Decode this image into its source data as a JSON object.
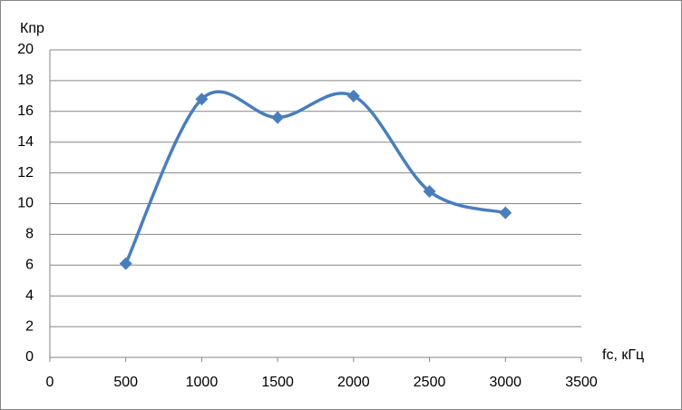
{
  "chart_data": {
    "type": "line",
    "y_label": "Кпр",
    "x_label": "fc, кГц",
    "series": [
      {
        "color": "#4a7ebb",
        "x": [
          500,
          1000,
          1500,
          2000,
          2500,
          3000
        ],
        "values": [
          6.1,
          16.8,
          15.6,
          17.0,
          10.8,
          9.4
        ]
      }
    ],
    "xlim": [
      0,
      3500
    ],
    "xticks": [
      0,
      500,
      1000,
      1500,
      2000,
      2500,
      3000,
      3500
    ],
    "ylim": [
      0,
      20
    ],
    "yticks": [
      0,
      2,
      4,
      6,
      8,
      10,
      12,
      14,
      16,
      18,
      20
    ],
    "grid": true,
    "smooth": true,
    "marker": "diamond"
  }
}
